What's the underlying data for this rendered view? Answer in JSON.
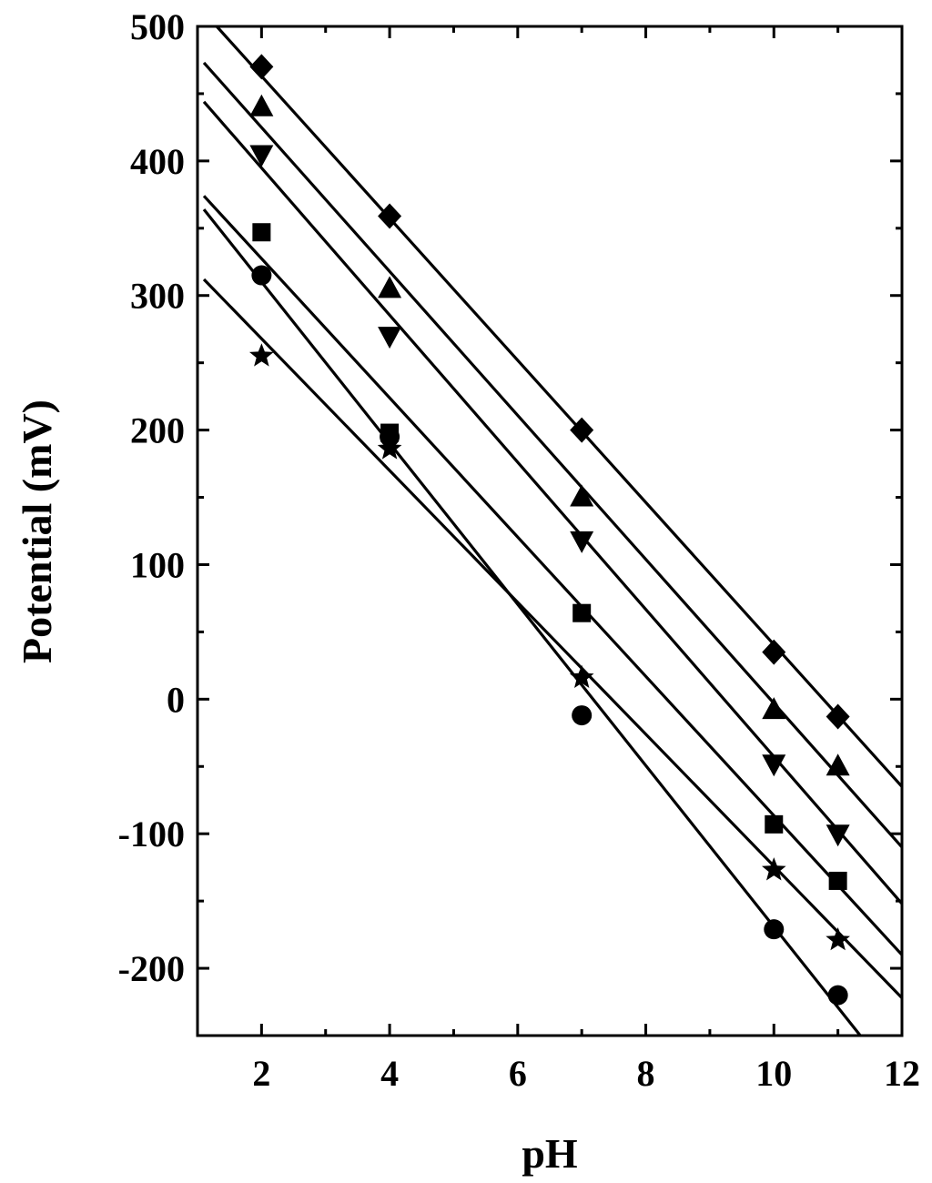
{
  "chart_data": {
    "type": "scatter",
    "title": "",
    "xlabel": "pH",
    "ylabel": "Potential (mV)",
    "xlim": [
      1,
      12
    ],
    "ylim": [
      -250,
      500
    ],
    "x_ticks": [
      "2",
      "4",
      "6",
      "8",
      "10",
      "12"
    ],
    "y_ticks": [
      "-200",
      "-100",
      "0",
      "100",
      "200",
      "300",
      "400",
      "500"
    ],
    "x_tick_values": [
      2,
      4,
      6,
      8,
      10,
      12
    ],
    "y_tick_values": [
      -200,
      -100,
      0,
      100,
      200,
      300,
      400,
      500
    ],
    "grid": false,
    "legend": "none",
    "series": [
      {
        "marker": "diamond",
        "x": [
          2,
          4,
          7,
          10,
          11
        ],
        "y": [
          470,
          359,
          200,
          35,
          -13
        ],
        "fit": [
          [
            1.3,
            500
          ],
          [
            12,
            -65
          ]
        ]
      },
      {
        "marker": "triangle-up",
        "x": [
          2,
          4,
          7,
          10,
          11
        ],
        "y": [
          440,
          305,
          150,
          -8,
          -50
        ],
        "fit": [
          [
            1.1,
            473
          ],
          [
            12,
            -110
          ]
        ]
      },
      {
        "marker": "triangle-down",
        "x": [
          2,
          4,
          7,
          10,
          11
        ],
        "y": [
          405,
          270,
          118,
          -48,
          -100
        ],
        "fit": [
          [
            1.1,
            444
          ],
          [
            12,
            -152
          ]
        ]
      },
      {
        "marker": "square",
        "x": [
          2,
          4,
          7,
          10,
          11
        ],
        "y": [
          347,
          198,
          64,
          -93,
          -135
        ],
        "fit": [
          [
            1.1,
            374
          ],
          [
            12,
            -190
          ]
        ]
      },
      {
        "marker": "circle",
        "x": [
          2,
          4,
          7,
          10,
          11
        ],
        "y": [
          315,
          195,
          -12,
          -171,
          -220
        ],
        "fit": [
          [
            1.1,
            364
          ],
          [
            11.35,
            -250
          ]
        ]
      },
      {
        "marker": "star",
        "x": [
          2,
          4,
          7,
          10,
          11
        ],
        "y": [
          255,
          186,
          16,
          -127,
          -179
        ],
        "fit": [
          [
            1.1,
            312
          ],
          [
            12,
            -222
          ]
        ]
      }
    ]
  }
}
